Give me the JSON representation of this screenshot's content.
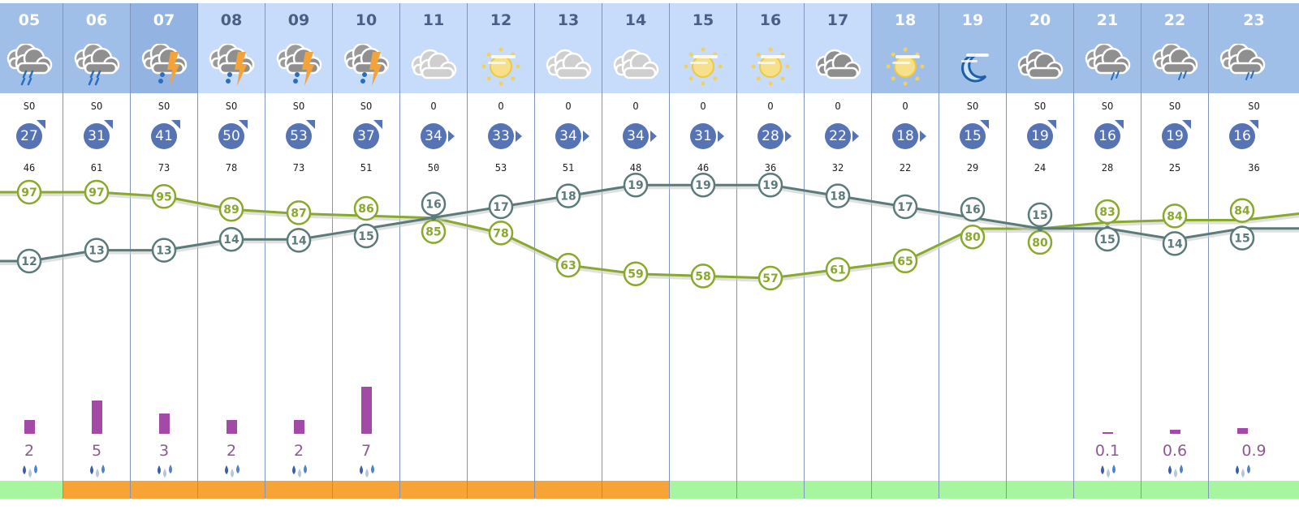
{
  "colors": {
    "temperature_line": "#5b7b7a",
    "humidity_line": "#88a92c",
    "precip_bar": "#a34aa6",
    "band_green": "#a8f5a0",
    "band_orange": "#f6a436",
    "wind_badge": "#5673b4"
  },
  "hours": [
    {
      "hour": "05",
      "header": "dark",
      "icon": "heavy-rain-icon",
      "wind_dir": "SO",
      "wind_speed": "27",
      "gust": "46",
      "temp": 12,
      "humidity": 97,
      "precip": "2",
      "band": "green"
    },
    {
      "hour": "06",
      "header": "dark",
      "icon": "heavy-rain-icon",
      "wind_dir": "SO",
      "wind_speed": "31",
      "gust": "61",
      "temp": 13,
      "humidity": 97,
      "precip": "5",
      "band": "orange"
    },
    {
      "hour": "07",
      "header": "sel",
      "icon": "thunderstorm-icon",
      "wind_dir": "SO",
      "wind_speed": "41",
      "gust": "73",
      "temp": 13,
      "humidity": 95,
      "precip": "3",
      "band": "orange"
    },
    {
      "hour": "08",
      "header": "light",
      "icon": "thunderstorm-icon",
      "wind_dir": "SO",
      "wind_speed": "50",
      "gust": "78",
      "temp": 14,
      "humidity": 89,
      "precip": "2",
      "band": "orange"
    },
    {
      "hour": "09",
      "header": "light",
      "icon": "thunderstorm-icon",
      "wind_dir": "SO",
      "wind_speed": "53",
      "gust": "73",
      "temp": 14,
      "humidity": 87,
      "precip": "2",
      "band": "orange"
    },
    {
      "hour": "10",
      "header": "light",
      "icon": "thunderstorm-icon",
      "wind_dir": "SO",
      "wind_speed": "37",
      "gust": "51",
      "temp": 15,
      "humidity": 86,
      "precip": "7",
      "band": "orange"
    },
    {
      "hour": "11",
      "header": "light",
      "icon": "cloudy-icon",
      "wind_dir": "O",
      "wind_speed": "34",
      "gust": "50",
      "temp": 16,
      "humidity": 85,
      "precip": "",
      "band": "orange"
    },
    {
      "hour": "12",
      "header": "light",
      "icon": "hazy-sun-icon",
      "wind_dir": "O",
      "wind_speed": "33",
      "gust": "53",
      "temp": 17,
      "humidity": 78,
      "precip": "",
      "band": "orange"
    },
    {
      "hour": "13",
      "header": "light",
      "icon": "cloudy-icon",
      "wind_dir": "O",
      "wind_speed": "34",
      "gust": "51",
      "temp": 18,
      "humidity": 63,
      "precip": "",
      "band": "orange"
    },
    {
      "hour": "14",
      "header": "light",
      "icon": "cloudy-icon",
      "wind_dir": "O",
      "wind_speed": "34",
      "gust": "48",
      "temp": 19,
      "humidity": 59,
      "precip": "",
      "band": "orange"
    },
    {
      "hour": "15",
      "header": "light",
      "icon": "hazy-sun-icon",
      "wind_dir": "O",
      "wind_speed": "31",
      "gust": "46",
      "temp": 19,
      "humidity": 58,
      "precip": "",
      "band": "green"
    },
    {
      "hour": "16",
      "header": "light",
      "icon": "hazy-sun-icon",
      "wind_dir": "O",
      "wind_speed": "28",
      "gust": "36",
      "temp": 19,
      "humidity": 57,
      "precip": "",
      "band": "green"
    },
    {
      "hour": "17",
      "header": "light",
      "icon": "overcast-icon",
      "wind_dir": "O",
      "wind_speed": "22",
      "gust": "32",
      "temp": 18,
      "humidity": 61,
      "precip": "",
      "band": "green"
    },
    {
      "hour": "18",
      "header": "dark",
      "icon": "hazy-sun-icon",
      "wind_dir": "O",
      "wind_speed": "18",
      "gust": "22",
      "temp": 17,
      "humidity": 65,
      "precip": "",
      "band": "green"
    },
    {
      "hour": "19",
      "header": "dark",
      "icon": "hazy-moon-icon",
      "wind_dir": "SO",
      "wind_speed": "15",
      "gust": "29",
      "temp": 16,
      "humidity": 80,
      "precip": "",
      "band": "green"
    },
    {
      "hour": "20",
      "header": "dark",
      "icon": "overcast-icon",
      "wind_dir": "SO",
      "wind_speed": "19",
      "gust": "24",
      "temp": 15,
      "humidity": 80,
      "precip": "",
      "band": "green"
    },
    {
      "hour": "21",
      "header": "dark",
      "icon": "light-rain-icon",
      "wind_dir": "SO",
      "wind_speed": "16",
      "gust": "28",
      "temp": 15,
      "humidity": 83,
      "precip": "0.1",
      "band": "green"
    },
    {
      "hour": "22",
      "header": "dark",
      "icon": "light-rain-icon",
      "wind_dir": "SO",
      "wind_speed": "19",
      "gust": "25",
      "temp": 14,
      "humidity": 84,
      "precip": "0.6",
      "band": "green"
    },
    {
      "hour": "23",
      "header": "dark",
      "icon": "light-rain-icon",
      "wind_dir": "SO",
      "wind_speed": "16",
      "gust": "36",
      "temp": 15,
      "humidity": 84,
      "precip": "0.9",
      "band": "green"
    }
  ]
}
